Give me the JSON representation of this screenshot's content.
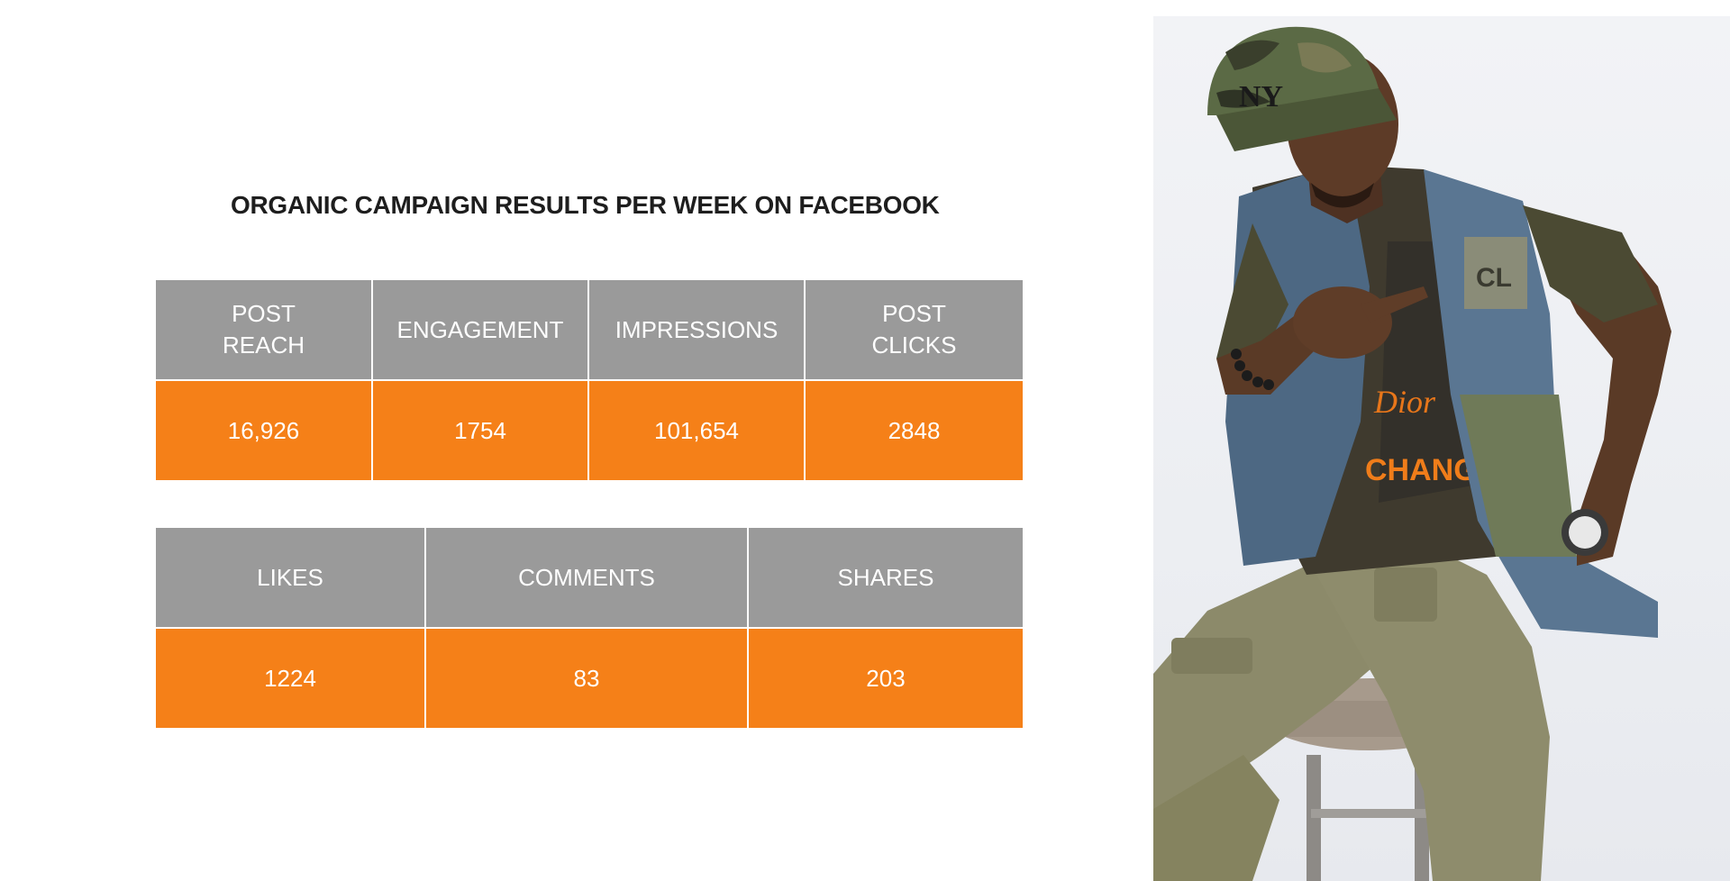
{
  "title": "ORGANIC CAMPAIGN RESULTS PER WEEK ON FACEBOOK",
  "table1": {
    "headers": [
      "POST\nREACH",
      "ENGAGEMENT",
      "IMPRESSIONS",
      "POST\nCLICKS"
    ],
    "values": [
      "16,926",
      "1754",
      "101,654",
      "2848"
    ]
  },
  "table2": {
    "headers": [
      "LIKES",
      "COMMENTS",
      "SHARES"
    ],
    "values": [
      "1224",
      "83",
      "203"
    ]
  },
  "photo": {
    "shirt_text": "CHANGE",
    "cap_logo": "NY",
    "patch_text": "CL"
  },
  "colors": {
    "header_gray": "#9a9a9a",
    "value_orange": "#f58018",
    "title_text": "#1e1e1e"
  }
}
